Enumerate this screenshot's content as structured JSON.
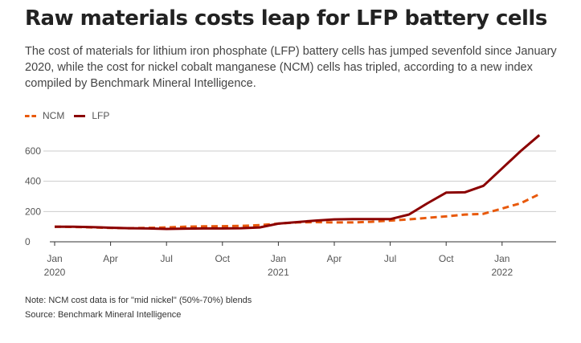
{
  "title": "Raw materials costs leap for LFP battery cells",
  "subtitle": "The cost of materials for lithium iron phosphate (LFP) battery cells has jumped sevenfold since January 2020, while the cost for nickel cobalt manganese (NCM) cells has tripled, according to a new index compiled by Benchmark Mineral Intelligence.",
  "note": "Note: NCM cost data is for \"mid nickel\" (50%-70%) blends",
  "source": "Source: Benchmark Mineral Intelligence",
  "chart_data": {
    "type": "line",
    "x": [
      "2020-01",
      "2020-02",
      "2020-03",
      "2020-04",
      "2020-05",
      "2020-06",
      "2020-07",
      "2020-08",
      "2020-09",
      "2020-10",
      "2020-11",
      "2020-12",
      "2021-01",
      "2021-02",
      "2021-03",
      "2021-04",
      "2021-05",
      "2021-06",
      "2021-07",
      "2021-08",
      "2021-09",
      "2021-10",
      "2021-11",
      "2021-12",
      "2022-01",
      "2022-02",
      "2022-03"
    ],
    "series": [
      {
        "name": "NCM",
        "color": "#e8590c",
        "style": "dashed",
        "values": [
          100,
          98,
          95,
          92,
          90,
          92,
          95,
          100,
          102,
          103,
          105,
          110,
          120,
          128,
          130,
          128,
          128,
          132,
          140,
          148,
          158,
          168,
          180,
          185,
          220,
          255,
          315
        ]
      },
      {
        "name": "LFP",
        "color": "#8b0000",
        "style": "solid",
        "values": [
          100,
          100,
          97,
          93,
          90,
          88,
          85,
          87,
          88,
          88,
          90,
          95,
          120,
          130,
          140,
          148,
          150,
          150,
          150,
          180,
          255,
          325,
          327,
          370,
          485,
          600,
          705
        ]
      }
    ],
    "yticks": [
      0,
      200,
      400,
      600
    ],
    "ylim": [
      0,
      720
    ],
    "xticks": [
      {
        "month": "2020-01",
        "label": "Jan",
        "year": "2020"
      },
      {
        "month": "2020-04",
        "label": "Apr"
      },
      {
        "month": "2020-07",
        "label": "Jul"
      },
      {
        "month": "2020-10",
        "label": "Oct"
      },
      {
        "month": "2021-01",
        "label": "Jan",
        "year": "2021"
      },
      {
        "month": "2021-04",
        "label": "Apr"
      },
      {
        "month": "2021-07",
        "label": "Jul"
      },
      {
        "month": "2021-10",
        "label": "Oct"
      },
      {
        "month": "2022-01",
        "label": "Jan",
        "year": "2022"
      }
    ],
    "grid": true,
    "legend": "top-left"
  }
}
